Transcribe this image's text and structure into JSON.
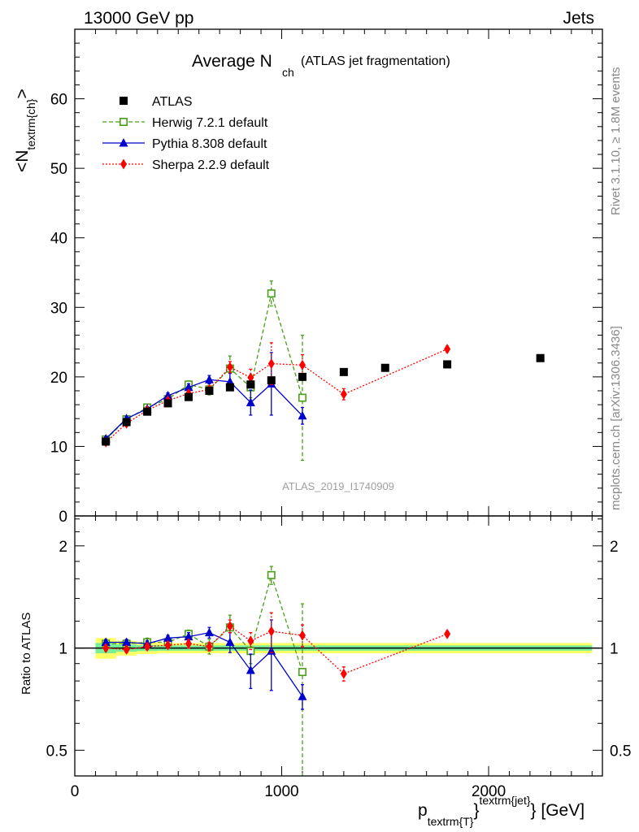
{
  "header": {
    "left": "13000 GeV pp",
    "right": "Jets"
  },
  "title": {
    "main": "Average N",
    "sub": "ch",
    "note": "(ATLAS jet fragmentation)"
  },
  "side_labels": {
    "rivet": "Rivet 3.1.10, ≥ 1.8M events",
    "mcplots": "mcplots.cern.ch [arXiv:1306.3436]"
  },
  "analysis_id": "ATLAS_2019_I1740909",
  "chart_data": [
    {
      "type": "scatter",
      "panel": "main",
      "ylabel": {
        "main": "<N",
        "sub": "textrm{ch}",
        "tail": ">"
      },
      "ylim": [
        0,
        70
      ],
      "xlim": [
        0,
        2550
      ],
      "yticks": [
        0,
        10,
        20,
        30,
        40,
        50,
        60
      ],
      "legend_position": "top-left",
      "series": [
        {
          "name": "ATLAS",
          "color": "#000000",
          "marker": "square-filled",
          "x": [
            150,
            250,
            350,
            450,
            550,
            650,
            750,
            850,
            950,
            1100,
            1300,
            1500,
            1800,
            2250
          ],
          "y": [
            10.7,
            13.5,
            15.0,
            16.2,
            17.1,
            18.0,
            18.5,
            18.9,
            19.5,
            20.0,
            20.7,
            21.3,
            21.8,
            22.7
          ],
          "err": [
            0.3,
            0.3,
            0.3,
            0.3,
            0.3,
            0.3,
            0.3,
            0.3,
            0.3,
            0.3,
            0.3,
            0.3,
            0.3,
            0.3
          ]
        },
        {
          "name": "Herwig 7.2.1 default",
          "color": "#4b9e1a",
          "marker": "square-open",
          "line": "dashed",
          "x": [
            150,
            250,
            350,
            450,
            550,
            650,
            750,
            850,
            950,
            1100
          ],
          "y": [
            11.0,
            13.9,
            15.6,
            16.8,
            18.9,
            18.2,
            21.2,
            18.5,
            32.0,
            17.0
          ],
          "err": [
            0.3,
            0.3,
            0.4,
            0.4,
            0.5,
            0.8,
            1.8,
            1.5,
            1.8,
            9.0
          ]
        },
        {
          "name": "Pythia 8.308 default",
          "color": "#0000cc",
          "marker": "triangle-filled",
          "line": "solid",
          "x": [
            150,
            250,
            350,
            450,
            550,
            650,
            750,
            850,
            950,
            1100
          ],
          "y": [
            11.1,
            14.0,
            15.4,
            17.3,
            18.5,
            19.6,
            19.3,
            16.3,
            19.0,
            14.4
          ],
          "err": [
            0.3,
            0.3,
            0.3,
            0.4,
            0.5,
            0.6,
            1.2,
            1.8,
            4.5,
            1.2
          ]
        },
        {
          "name": "Sherpa 2.2.9 default",
          "color": "#ff0000",
          "marker": "diamond-filled",
          "line": "dotted",
          "x": [
            150,
            250,
            350,
            450,
            550,
            650,
            750,
            850,
            950,
            1100,
            1300,
            1800
          ],
          "y": [
            10.6,
            13.3,
            15.2,
            16.6,
            17.6,
            18.2,
            21.4,
            19.9,
            21.9,
            21.7,
            17.5,
            24.0
          ],
          "err": [
            0.3,
            0.3,
            0.3,
            0.4,
            0.4,
            0.5,
            0.8,
            1.2,
            3.0,
            1.5,
            0.8,
            0.4
          ]
        }
      ]
    },
    {
      "type": "scatter",
      "panel": "ratio",
      "ylabel": "Ratio to ATLAS",
      "yscale": "log",
      "ylim": [
        0.42,
        2.45
      ],
      "yticks": [
        0.5,
        1,
        2
      ],
      "ytick_labels": [
        "0.5",
        "1",
        "2"
      ],
      "xlim": [
        0,
        2550
      ],
      "xticks": [
        0,
        1000,
        2000
      ],
      "xtick_labels": [
        "0",
        "1000",
        "2000"
      ],
      "xlabel": {
        "main": "p",
        "sub": "textrm{T}",
        "brace": "}",
        "sup": "textrm{jet}",
        "tail": "} [GeV]"
      },
      "band": {
        "x": [
          100,
          200,
          300,
          400,
          500,
          600,
          700,
          800,
          900,
          1000,
          1200,
          1400,
          1600,
          2000,
          2500
        ],
        "outer": [
          0.07,
          0.05,
          0.04,
          0.035,
          0.035,
          0.035,
          0.035,
          0.035,
          0.035,
          0.035,
          0.035,
          0.035,
          0.035,
          0.035,
          0.035
        ],
        "inner": [
          0.035,
          0.025,
          0.02,
          0.018,
          0.018,
          0.018,
          0.018,
          0.018,
          0.018,
          0.018,
          0.018,
          0.018,
          0.018,
          0.018,
          0.018
        ],
        "outer_color": "#ffff66",
        "inner_color": "#77ee99"
      },
      "series": [
        {
          "name": "Herwig 7.2.1 default",
          "color": "#4b9e1a",
          "marker": "square-open",
          "line": "dashed",
          "x": [
            150,
            250,
            350,
            450,
            550,
            650,
            750,
            850,
            950,
            1100
          ],
          "y": [
            1.03,
            1.03,
            1.04,
            1.04,
            1.1,
            1.01,
            1.15,
            0.98,
            1.64,
            0.85
          ],
          "err": [
            0.02,
            0.02,
            0.03,
            0.03,
            0.03,
            0.05,
            0.1,
            0.08,
            0.1,
            0.5
          ]
        },
        {
          "name": "Pythia 8.308 default",
          "color": "#0000cc",
          "marker": "triangle-filled",
          "line": "solid",
          "x": [
            150,
            250,
            350,
            450,
            550,
            650,
            750,
            850,
            950,
            1100
          ],
          "y": [
            1.04,
            1.04,
            1.03,
            1.07,
            1.08,
            1.11,
            1.04,
            0.86,
            0.98,
            0.72
          ],
          "err": [
            0.02,
            0.02,
            0.02,
            0.02,
            0.03,
            0.04,
            0.07,
            0.1,
            0.23,
            0.06
          ]
        },
        {
          "name": "Sherpa 2.2.9 default",
          "color": "#ff0000",
          "marker": "diamond-filled",
          "line": "dotted",
          "x": [
            150,
            250,
            350,
            450,
            550,
            650,
            750,
            850,
            950,
            1100,
            1300,
            1800
          ],
          "y": [
            1.0,
            0.99,
            1.01,
            1.02,
            1.03,
            1.01,
            1.16,
            1.05,
            1.12,
            1.09,
            0.84,
            1.1
          ],
          "err": [
            0.02,
            0.02,
            0.02,
            0.02,
            0.03,
            0.03,
            0.05,
            0.06,
            0.15,
            0.08,
            0.04,
            0.02
          ]
        }
      ]
    }
  ]
}
